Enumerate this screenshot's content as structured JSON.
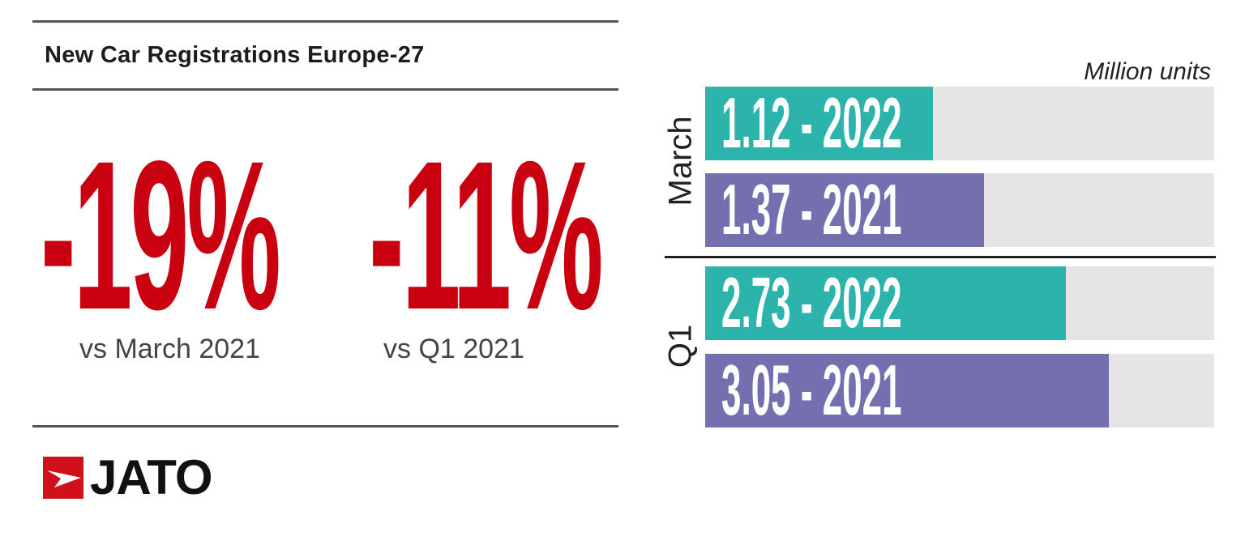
{
  "left_panel": {
    "title": "New Car Registrations Europe-27",
    "stats": [
      {
        "value": "-19%",
        "label": "vs March 2021"
      },
      {
        "value": "-11%",
        "label": "vs Q1 2021"
      }
    ],
    "logo_text": "JATO"
  },
  "colors": {
    "accent_red": "#c8000f",
    "series_2022": "#2bb3ac",
    "series_2021": "#7470b0",
    "track": "#e6e4e5"
  },
  "chart_data": {
    "type": "bar",
    "orientation": "horizontal",
    "unit_label": "Million units",
    "groups": [
      {
        "name": "March",
        "xmax": 2.5,
        "bars": [
          {
            "label": "1.12 - 2022",
            "year": "2022",
            "value": 1.12
          },
          {
            "label": "1.37 - 2021",
            "year": "2021",
            "value": 1.37
          }
        ]
      },
      {
        "name": "Q1",
        "xmax": 3.85,
        "bars": [
          {
            "label": "2.73 - 2022",
            "year": "2022",
            "value": 2.73
          },
          {
            "label": "3.05 - 2021",
            "year": "2021",
            "value": 3.05
          }
        ]
      }
    ]
  }
}
